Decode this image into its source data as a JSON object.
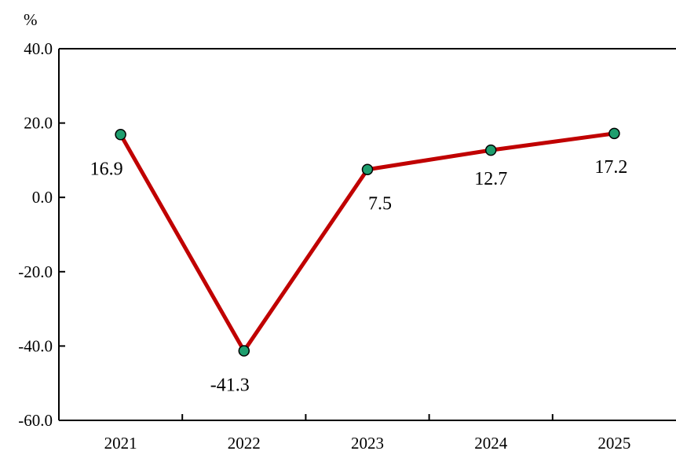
{
  "chart_data": {
    "type": "line",
    "title": "",
    "xlabel": "",
    "ylabel": "",
    "unit": "%",
    "categories": [
      "2021",
      "2022",
      "2023",
      "2024",
      "2025"
    ],
    "series": [
      {
        "values": [
          16.9,
          -41.3,
          7.5,
          12.7,
          17.2
        ]
      }
    ],
    "data_labels": [
      "16.9",
      "-41.3",
      "7.5",
      "12.7",
      "17.2"
    ],
    "ylim": [
      -60,
      40
    ],
    "yticks": [
      40,
      20,
      0,
      -20,
      -40,
      -60
    ],
    "ytick_labels": [
      "40.0",
      "20.0",
      "0.0",
      "-20.0",
      "-40.0",
      "-60.0"
    ],
    "grid": false,
    "legend": "none",
    "colors": {
      "line": "#c00000",
      "marker_fill": "#1e9e6e",
      "marker_edge": "#000000",
      "axis": "#000000"
    }
  }
}
